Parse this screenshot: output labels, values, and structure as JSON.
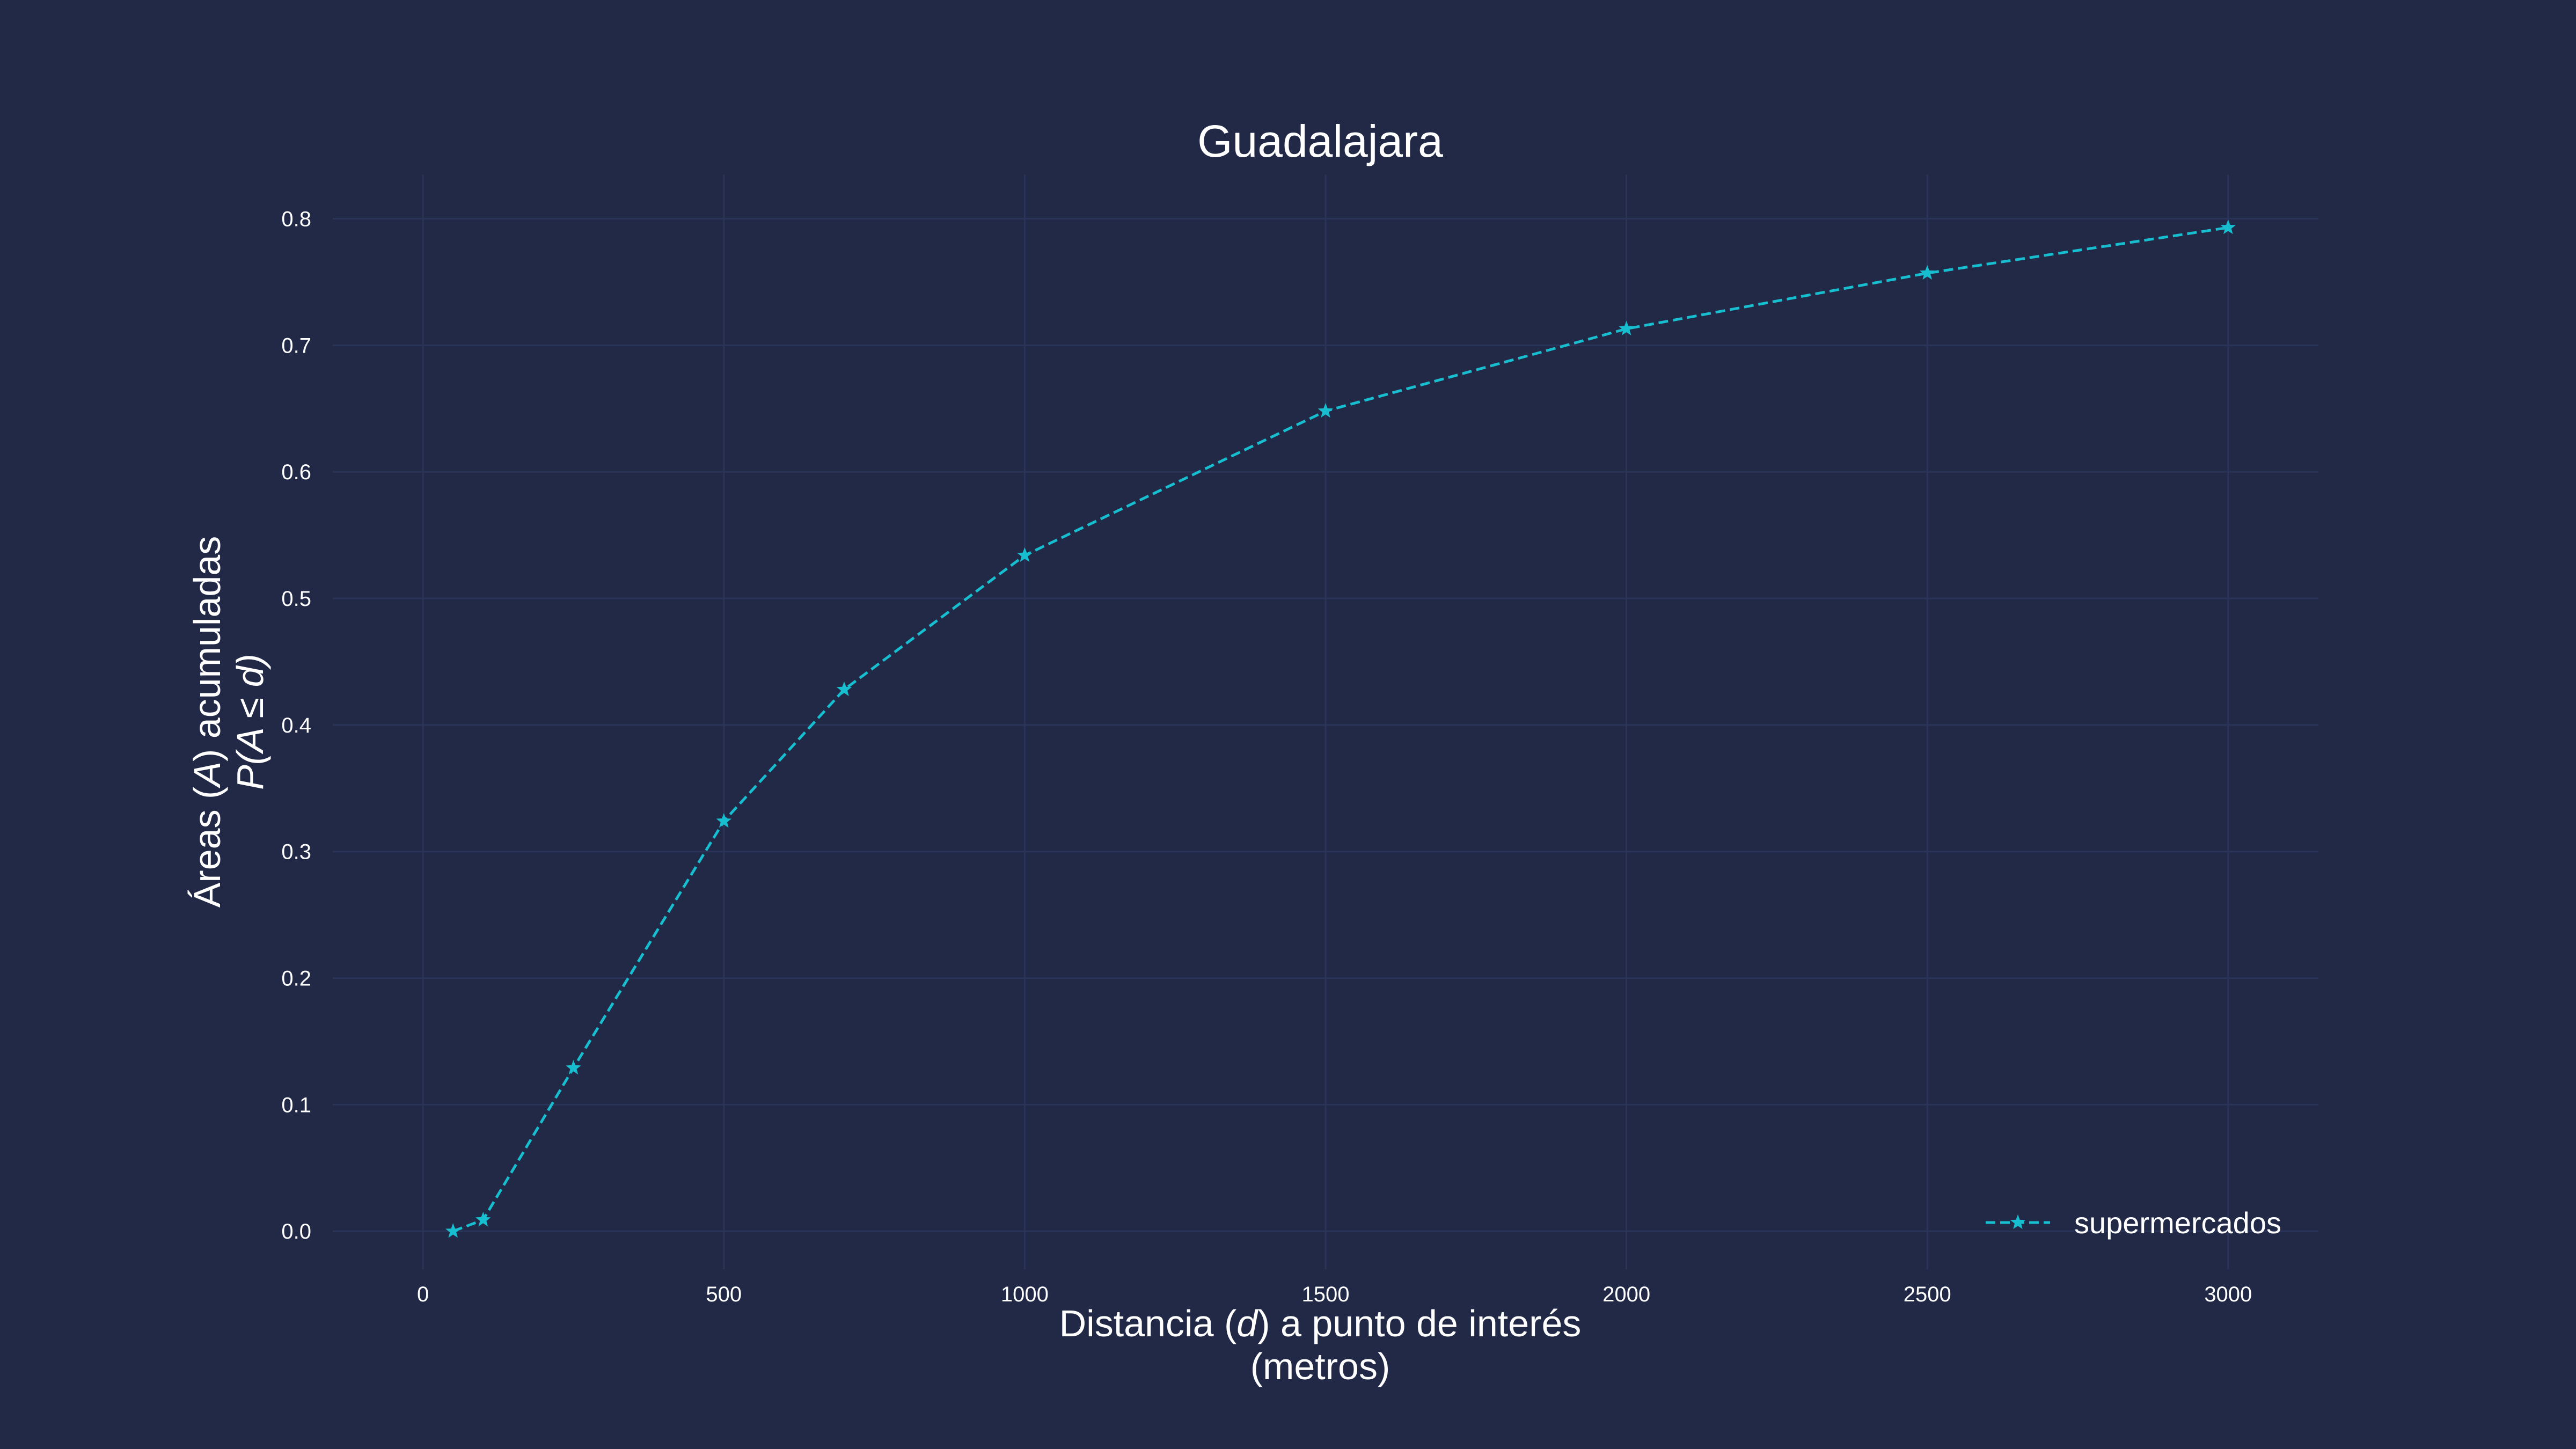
{
  "chart_data": {
    "type": "line",
    "title": "Guadalajara",
    "xlabel": {
      "line1_pre": "Distancia (",
      "line1_var": "d",
      "line1_post": ") a punto de interés",
      "line2": "(metros)"
    },
    "ylabel": {
      "line1_pre": "Áreas (",
      "line1_var": "A",
      "line1_post": ") acumuladas",
      "line2_expr": "P(A ≤ ",
      "line2_var": "d",
      "line2_close": ")"
    },
    "xlim": [
      -150,
      3150
    ],
    "ylim": [
      -0.03,
      0.835
    ],
    "xticks": [
      0,
      500,
      1000,
      1500,
      2000,
      2500,
      3000
    ],
    "yticks": [
      0.0,
      0.1,
      0.2,
      0.3,
      0.4,
      0.5,
      0.6,
      0.7,
      0.8
    ],
    "ytick_labels": [
      "0.0",
      "0.1",
      "0.2",
      "0.3",
      "0.4",
      "0.5",
      "0.6",
      "0.7",
      "0.8"
    ],
    "grid": true,
    "legend_position": "lower-right",
    "series": [
      {
        "name": "supermercados",
        "color": "#17BECF",
        "line_style": "dashed",
        "marker": "star",
        "x": [
          50,
          100,
          250,
          500,
          700,
          1000,
          1500,
          2000,
          2500,
          3000
        ],
        "y": [
          0.0,
          0.009,
          0.129,
          0.324,
          0.428,
          0.534,
          0.648,
          0.713,
          0.757,
          0.793
        ]
      }
    ]
  },
  "colors": {
    "background": "#212946",
    "grid": "#2A3459",
    "text": "#FFFFFF"
  }
}
